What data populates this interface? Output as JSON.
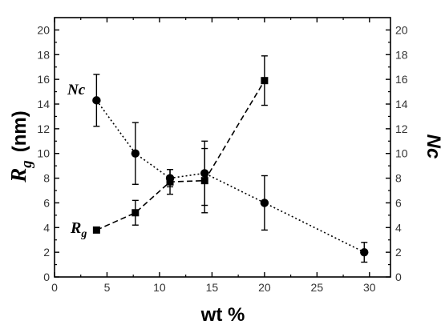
{
  "chart_data": {
    "type": "line",
    "xlabel": "wt %",
    "ylabel_left": {
      "main": "R",
      "sub": "g",
      "unit": "(nm)"
    },
    "ylabel_right": "Nc",
    "xlim": [
      0,
      32
    ],
    "ylim": [
      0,
      21
    ],
    "xticks": [
      0,
      5,
      10,
      15,
      20,
      25,
      30
    ],
    "yticks": [
      0,
      2,
      4,
      6,
      8,
      10,
      12,
      14,
      16,
      18,
      20
    ],
    "grid": false,
    "legend": "none",
    "series": [
      {
        "name": "Nc",
        "label": "Nc",
        "axis": "right",
        "marker": "circle",
        "line_style": "dotted",
        "x": [
          4,
          7.7,
          11,
          14.3,
          20,
          29.5
        ],
        "y": [
          14.3,
          10.0,
          8.0,
          8.4,
          6.0,
          2.0
        ],
        "err": [
          2.1,
          2.5,
          0.7,
          2.6,
          2.2,
          0.8
        ]
      },
      {
        "name": "Rg",
        "label": {
          "main": "R",
          "sub": "g"
        },
        "axis": "left",
        "marker": "square",
        "line_style": "dashed",
        "x": [
          4,
          7.7,
          11,
          14.3,
          20
        ],
        "y": [
          3.8,
          5.2,
          7.7,
          7.8,
          15.9
        ],
        "err": [
          0.0,
          1.0,
          1.0,
          2.6,
          2.0
        ]
      }
    ],
    "colors": {
      "marks": "#000000",
      "axis": "#000000",
      "tick_text": "#333333"
    }
  }
}
